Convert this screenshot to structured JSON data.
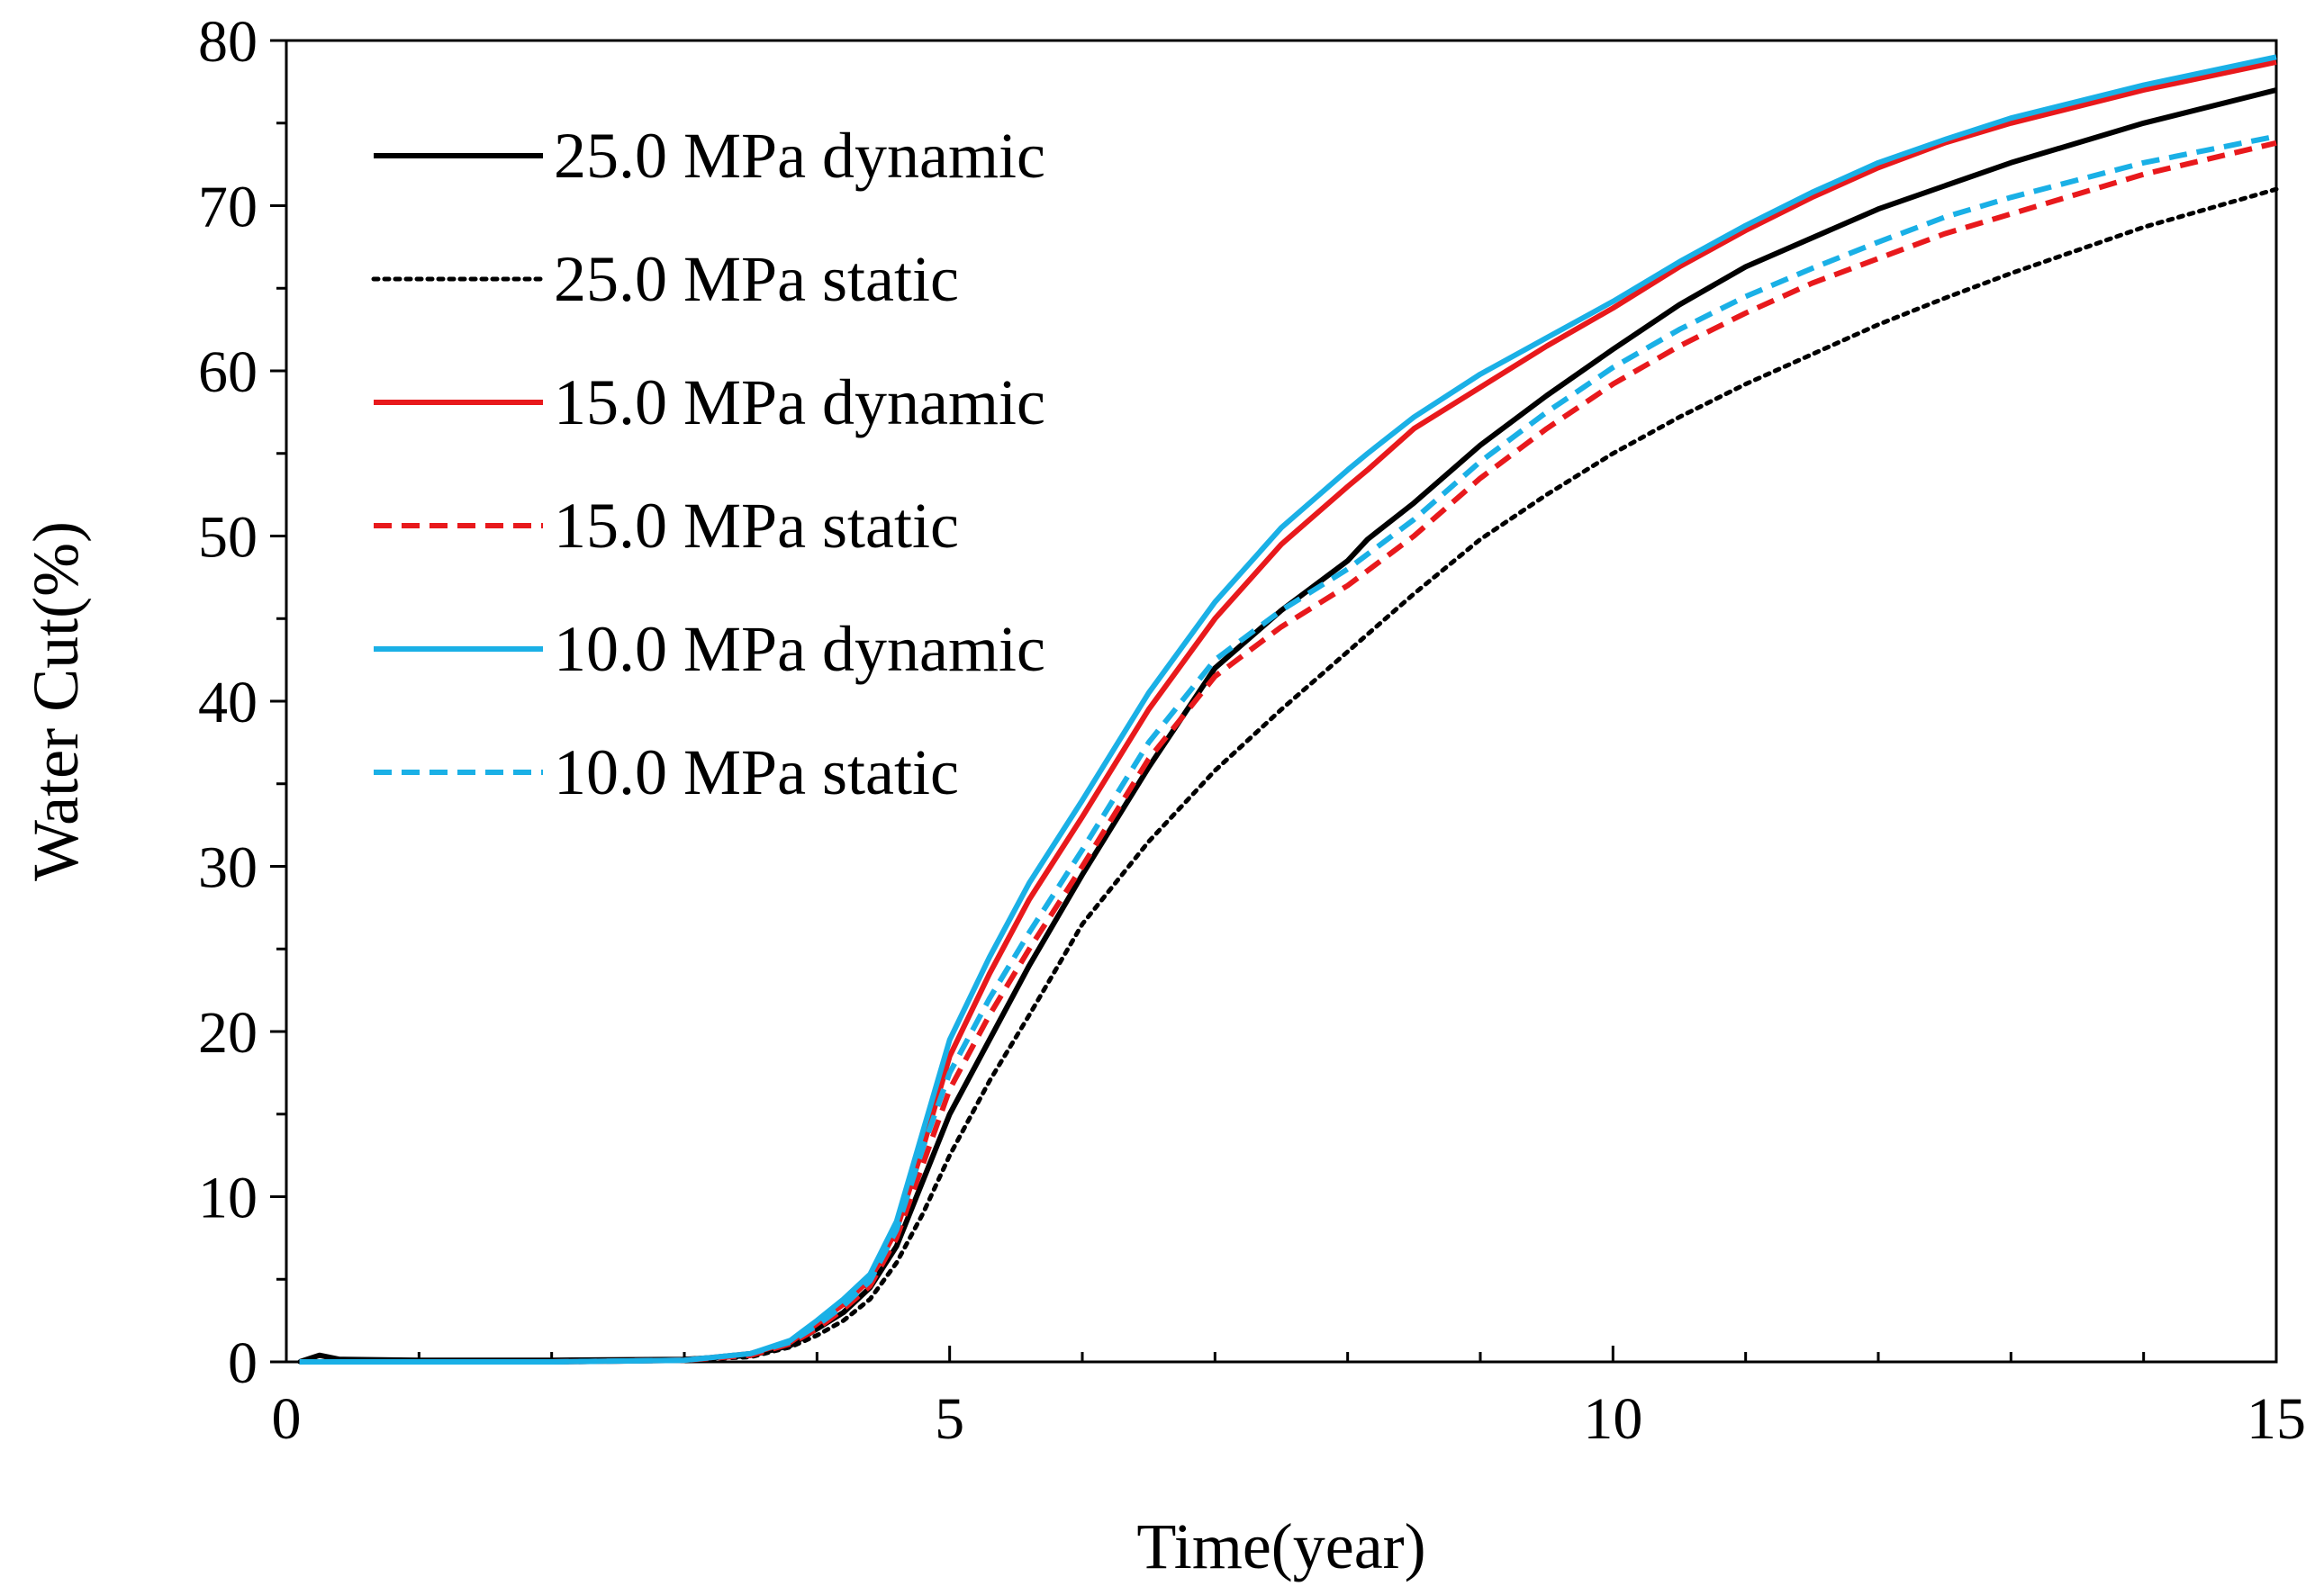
{
  "chart_data": {
    "type": "line",
    "title": "",
    "xlabel": "Time(year)",
    "ylabel": "Water Cut(%)",
    "xlim": [
      0,
      15
    ],
    "ylim": [
      0,
      80
    ],
    "x_ticks": [
      0,
      5,
      10,
      15
    ],
    "x_minor_step": 1,
    "y_ticks": [
      0,
      10,
      20,
      30,
      40,
      50,
      60,
      70,
      80
    ],
    "y_minor_step": 5,
    "grid": false,
    "legend_position": "top-left",
    "series": [
      {
        "name": "25.0 MPa dynamic",
        "color": "#000000",
        "style": "solid",
        "points": [
          [
            0.1,
            0
          ],
          [
            0.25,
            0.4
          ],
          [
            0.4,
            0.15
          ],
          [
            1,
            0.1
          ],
          [
            2,
            0.1
          ],
          [
            3,
            0.15
          ],
          [
            3.5,
            0.4
          ],
          [
            3.8,
            1
          ],
          [
            4,
            2
          ],
          [
            4.2,
            3
          ],
          [
            4.4,
            4.5
          ],
          [
            4.6,
            7
          ],
          [
            4.8,
            11
          ],
          [
            5,
            15
          ],
          [
            5.3,
            19.5
          ],
          [
            5.6,
            24
          ],
          [
            6,
            29.5
          ],
          [
            6.5,
            36
          ],
          [
            7,
            42
          ],
          [
            7.5,
            45.5
          ],
          [
            8,
            48.5
          ],
          [
            8.15,
            49.8
          ],
          [
            8.5,
            52
          ],
          [
            9,
            55.5
          ],
          [
            9.5,
            58.5
          ],
          [
            10,
            61.3
          ],
          [
            10.5,
            64
          ],
          [
            11,
            66.3
          ],
          [
            12,
            69.8
          ],
          [
            13,
            72.6
          ],
          [
            14,
            75
          ],
          [
            15,
            77
          ]
        ]
      },
      {
        "name": "25.0 MPa static",
        "color": "#000000",
        "style": "dotted",
        "points": [
          [
            0.1,
            0
          ],
          [
            1,
            0
          ],
          [
            2,
            0.1
          ],
          [
            3,
            0.1
          ],
          [
            3.5,
            0.3
          ],
          [
            3.8,
            0.9
          ],
          [
            4,
            1.6
          ],
          [
            4.2,
            2.5
          ],
          [
            4.4,
            3.8
          ],
          [
            4.6,
            6
          ],
          [
            4.8,
            9
          ],
          [
            5,
            12.5
          ],
          [
            5.3,
            17
          ],
          [
            5.6,
            21
          ],
          [
            6,
            26.5
          ],
          [
            6.5,
            31.5
          ],
          [
            7,
            35.8
          ],
          [
            7.5,
            39.5
          ],
          [
            8,
            43
          ],
          [
            8.5,
            46.5
          ],
          [
            9,
            49.8
          ],
          [
            9.5,
            52.5
          ],
          [
            10,
            55
          ],
          [
            10.5,
            57.2
          ],
          [
            11,
            59.2
          ],
          [
            11.5,
            61
          ],
          [
            12,
            62.8
          ],
          [
            12.5,
            64.4
          ],
          [
            13,
            65.9
          ],
          [
            14,
            68.7
          ],
          [
            15,
            71
          ]
        ]
      },
      {
        "name": "15.0 MPa dynamic",
        "color": "#e8191c",
        "style": "solid",
        "points": [
          [
            0.1,
            0
          ],
          [
            1,
            0
          ],
          [
            2,
            0
          ],
          [
            3,
            0.1
          ],
          [
            3.5,
            0.5
          ],
          [
            3.8,
            1.2
          ],
          [
            4,
            2.3
          ],
          [
            4.2,
            3.5
          ],
          [
            4.4,
            5
          ],
          [
            4.6,
            8
          ],
          [
            4.8,
            13
          ],
          [
            5,
            18.5
          ],
          [
            5.3,
            23.5
          ],
          [
            5.6,
            28
          ],
          [
            6,
            33
          ],
          [
            6.5,
            39.5
          ],
          [
            7,
            45
          ],
          [
            7.5,
            49.5
          ],
          [
            8,
            53
          ],
          [
            8.15,
            54
          ],
          [
            8.5,
            56.5
          ],
          [
            9,
            59
          ],
          [
            9.5,
            61.5
          ],
          [
            10,
            63.8
          ],
          [
            10.5,
            66.3
          ],
          [
            11,
            68.5
          ],
          [
            11.5,
            70.5
          ],
          [
            12,
            72.3
          ],
          [
            12.5,
            73.8
          ],
          [
            13,
            75
          ],
          [
            14,
            77
          ],
          [
            15,
            78.7
          ]
        ]
      },
      {
        "name": "15.0 MPa static",
        "color": "#e8191c",
        "style": "dashed",
        "points": [
          [
            0.1,
            0
          ],
          [
            1,
            0
          ],
          [
            2,
            0
          ],
          [
            3,
            0.1
          ],
          [
            3.5,
            0.4
          ],
          [
            3.8,
            1.1
          ],
          [
            4,
            2
          ],
          [
            4.2,
            3.2
          ],
          [
            4.4,
            4.6
          ],
          [
            4.6,
            7.5
          ],
          [
            4.8,
            12
          ],
          [
            5,
            16.5
          ],
          [
            5.3,
            21
          ],
          [
            5.6,
            25
          ],
          [
            6,
            30
          ],
          [
            6.5,
            36.5
          ],
          [
            7,
            41.5
          ],
          [
            7.5,
            44.5
          ],
          [
            8,
            47
          ],
          [
            8.5,
            50
          ],
          [
            9,
            53.5
          ],
          [
            9.5,
            56.5
          ],
          [
            10,
            59.2
          ],
          [
            10.5,
            61.5
          ],
          [
            11,
            63.5
          ],
          [
            11.5,
            65.3
          ],
          [
            12,
            66.8
          ],
          [
            12.5,
            68.3
          ],
          [
            13,
            69.5
          ],
          [
            14,
            71.9
          ],
          [
            15,
            73.8
          ]
        ]
      },
      {
        "name": "10.0 MPa dynamic",
        "color": "#1ab0e6",
        "style": "solid",
        "points": [
          [
            0.1,
            0
          ],
          [
            1,
            0
          ],
          [
            2,
            0
          ],
          [
            3,
            0.1
          ],
          [
            3.5,
            0.5
          ],
          [
            3.8,
            1.3
          ],
          [
            4,
            2.5
          ],
          [
            4.2,
            3.8
          ],
          [
            4.4,
            5.3
          ],
          [
            4.6,
            8.5
          ],
          [
            4.8,
            14
          ],
          [
            5,
            19.5
          ],
          [
            5.3,
            24.5
          ],
          [
            5.6,
            29
          ],
          [
            6,
            34
          ],
          [
            6.5,
            40.5
          ],
          [
            7,
            46
          ],
          [
            7.5,
            50.5
          ],
          [
            8,
            54
          ],
          [
            8.15,
            55
          ],
          [
            8.5,
            57.2
          ],
          [
            9,
            59.8
          ],
          [
            9.5,
            62
          ],
          [
            10,
            64.2
          ],
          [
            10.5,
            66.6
          ],
          [
            11,
            68.8
          ],
          [
            11.5,
            70.8
          ],
          [
            12,
            72.6
          ],
          [
            12.5,
            74
          ],
          [
            13,
            75.3
          ],
          [
            14,
            77.3
          ],
          [
            15,
            79
          ]
        ]
      },
      {
        "name": "10.0 MPa static",
        "color": "#1ab0e6",
        "style": "dashed",
        "points": [
          [
            0.1,
            0
          ],
          [
            1,
            0
          ],
          [
            2,
            0
          ],
          [
            3,
            0.1
          ],
          [
            3.5,
            0.5
          ],
          [
            3.8,
            1.2
          ],
          [
            4,
            2.2
          ],
          [
            4.2,
            3.4
          ],
          [
            4.4,
            4.9
          ],
          [
            4.6,
            8
          ],
          [
            4.8,
            13
          ],
          [
            5,
            17.5
          ],
          [
            5.3,
            22
          ],
          [
            5.6,
            26
          ],
          [
            6,
            31
          ],
          [
            6.5,
            37.5
          ],
          [
            7,
            42.5
          ],
          [
            7.5,
            45.5
          ],
          [
            8,
            48
          ],
          [
            8.5,
            51
          ],
          [
            9,
            54.5
          ],
          [
            9.5,
            57.5
          ],
          [
            10,
            60.2
          ],
          [
            10.5,
            62.5
          ],
          [
            11,
            64.5
          ],
          [
            11.5,
            66.2
          ],
          [
            12,
            67.8
          ],
          [
            12.5,
            69.3
          ],
          [
            13,
            70.5
          ],
          [
            14,
            72.6
          ],
          [
            15,
            74.2
          ]
        ]
      }
    ]
  }
}
